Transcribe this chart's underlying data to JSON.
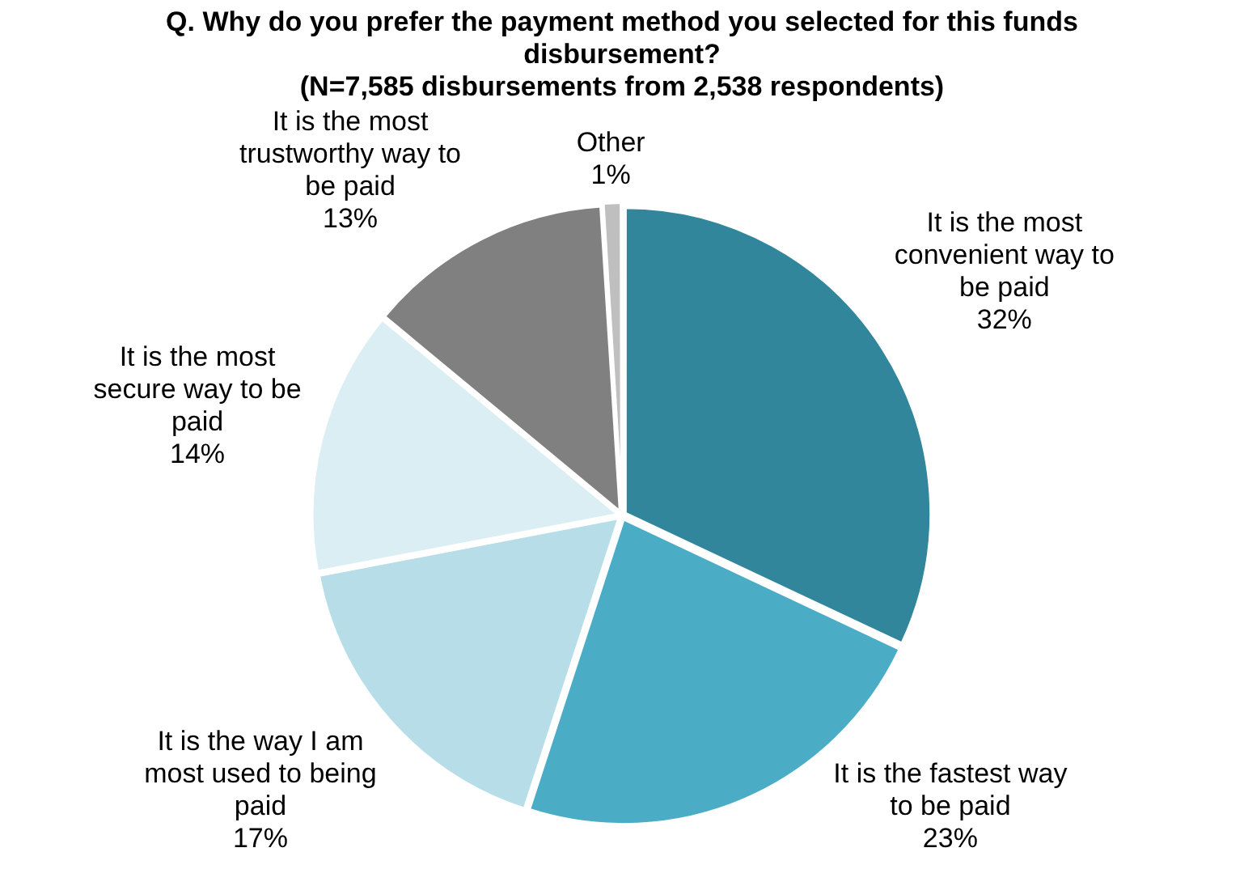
{
  "chart_data": {
    "type": "pie",
    "title": "Q. Why do you prefer the payment method you selected for this funds disbursement?",
    "subtitle": "(N=7,585 disbursements from 2,538 respondents)",
    "categories": [
      "It is the most convenient way to be paid",
      "It is the fastest way to be paid",
      "It is the way I am most used to being paid",
      "It is the most secure way to be paid",
      "It is the most trustworthy way to be paid",
      "Other"
    ],
    "values": [
      32,
      23,
      17,
      14,
      13,
      1
    ],
    "value_labels": [
      "32%",
      "23%",
      "17%",
      "14%",
      "13%",
      "1%"
    ],
    "colors": [
      "#31869b",
      "#4bacc6",
      "#b7dee8",
      "#daeef3",
      "#808080",
      "#bfbfbf"
    ],
    "legend": false
  }
}
